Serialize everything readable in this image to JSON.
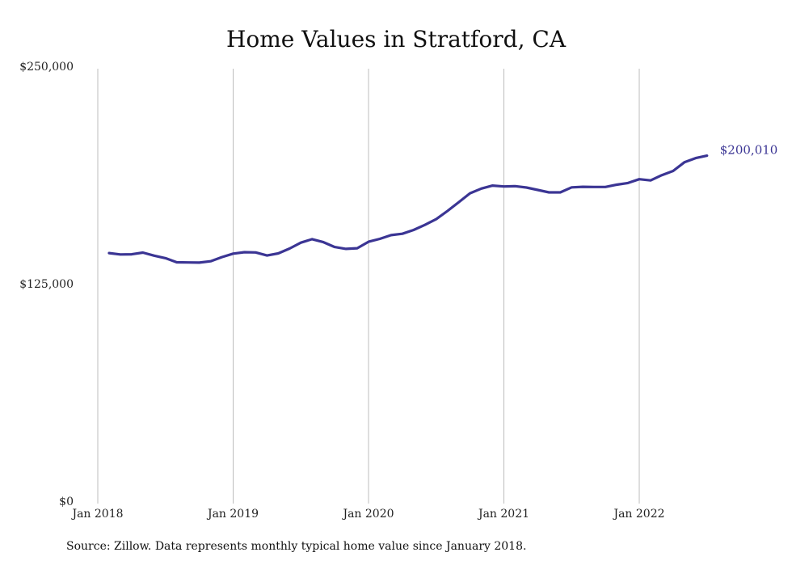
{
  "chart_data": {
    "type": "line",
    "title": "Home Values in Stratford, CA",
    "xlabel": "",
    "ylabel": "",
    "ylim": [
      0,
      250000
    ],
    "y_ticks": [
      "$0",
      "$125,000",
      "$250,000"
    ],
    "y_tick_values": [
      0,
      125000,
      250000
    ],
    "x_ticks": [
      "Jan 2018",
      "Jan 2019",
      "Jan 2020",
      "Jan 2021",
      "Jan 2022"
    ],
    "x_tick_dates": [
      "2018-01",
      "2019-01",
      "2020-01",
      "2021-01",
      "2022-01"
    ],
    "grid": "vertical",
    "line_color": "#3b3594",
    "grid_color": "#bdbdbd",
    "end_label": "$200,010",
    "series": [
      {
        "x": [
          "2018-02",
          "2018-03",
          "2018-04",
          "2018-05",
          "2018-06",
          "2018-07",
          "2018-08",
          "2018-09",
          "2018-10",
          "2018-11",
          "2018-12",
          "2019-01",
          "2019-02",
          "2019-03",
          "2019-04",
          "2019-05",
          "2019-06",
          "2019-07",
          "2019-08",
          "2019-09",
          "2019-10",
          "2019-11",
          "2019-12",
          "2020-01",
          "2020-02",
          "2020-03",
          "2020-04",
          "2020-05",
          "2020-06",
          "2020-07",
          "2020-08",
          "2020-09",
          "2020-10",
          "2020-11",
          "2020-12",
          "2021-01",
          "2021-02",
          "2021-03",
          "2021-04",
          "2021-05",
          "2021-06",
          "2021-07",
          "2021-08",
          "2021-09",
          "2021-10",
          "2021-11",
          "2021-12",
          "2022-01",
          "2022-02",
          "2022-03",
          "2022-04",
          "2022-05",
          "2022-06",
          "2022-07"
        ],
        "values": [
          144000,
          143200,
          143300,
          144300,
          142500,
          141100,
          138700,
          138600,
          138500,
          139300,
          141700,
          143700,
          144500,
          144400,
          142600,
          143800,
          146600,
          150000,
          152000,
          150300,
          147500,
          146400,
          146800,
          150500,
          152200,
          154300,
          155100,
          157300,
          160200,
          163500,
          168200,
          173300,
          178400,
          181100,
          182800,
          182300,
          182500,
          181700,
          180300,
          178900,
          178900,
          181800,
          182100,
          182000,
          182000,
          183300,
          184300,
          186500,
          185800,
          188800,
          191200,
          196200,
          198600,
          200010
        ]
      }
    ]
  },
  "source_note": "Source: Zillow. Data represents monthly typical home value since January 2018."
}
